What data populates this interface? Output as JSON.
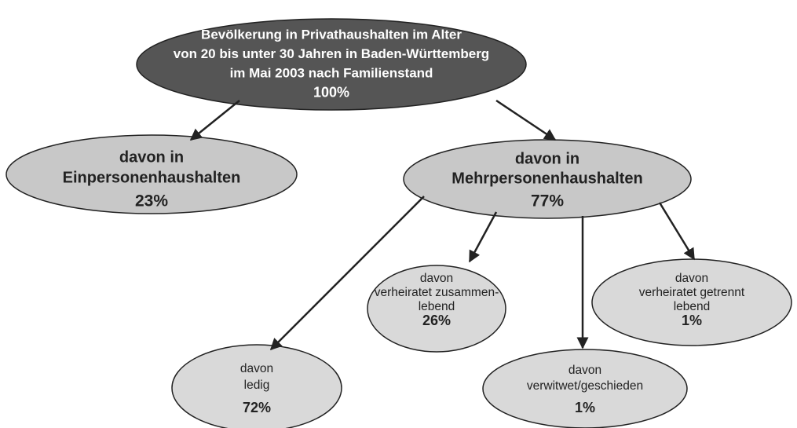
{
  "nodes": [
    {
      "lines": [
        "Bevölkerung in Privathaushalten im Alter",
        "von 20 bis unter 30 Jahren in Baden-Württemberg",
        "im Mai 2003 nach Familienstand"
      ],
      "value": "100%"
    },
    {
      "lines": [
        "davon in",
        "Einpersonenhaushalten"
      ],
      "value": "23%"
    },
    {
      "lines": [
        "davon in",
        "Mehrpersonenhaushalten"
      ],
      "value": "77%"
    },
    {
      "lines": [
        "davon",
        "verheiratet zusammen-",
        "lebend"
      ],
      "value": "26%"
    },
    {
      "lines": [
        "davon",
        "verheiratet getrennt",
        "lebend"
      ],
      "value": "1%"
    },
    {
      "lines": [
        "davon",
        "ledig"
      ],
      "value": "72%"
    },
    {
      "lines": [
        "davon",
        "verwitwet/geschieden"
      ],
      "value": "1%"
    }
  ]
}
